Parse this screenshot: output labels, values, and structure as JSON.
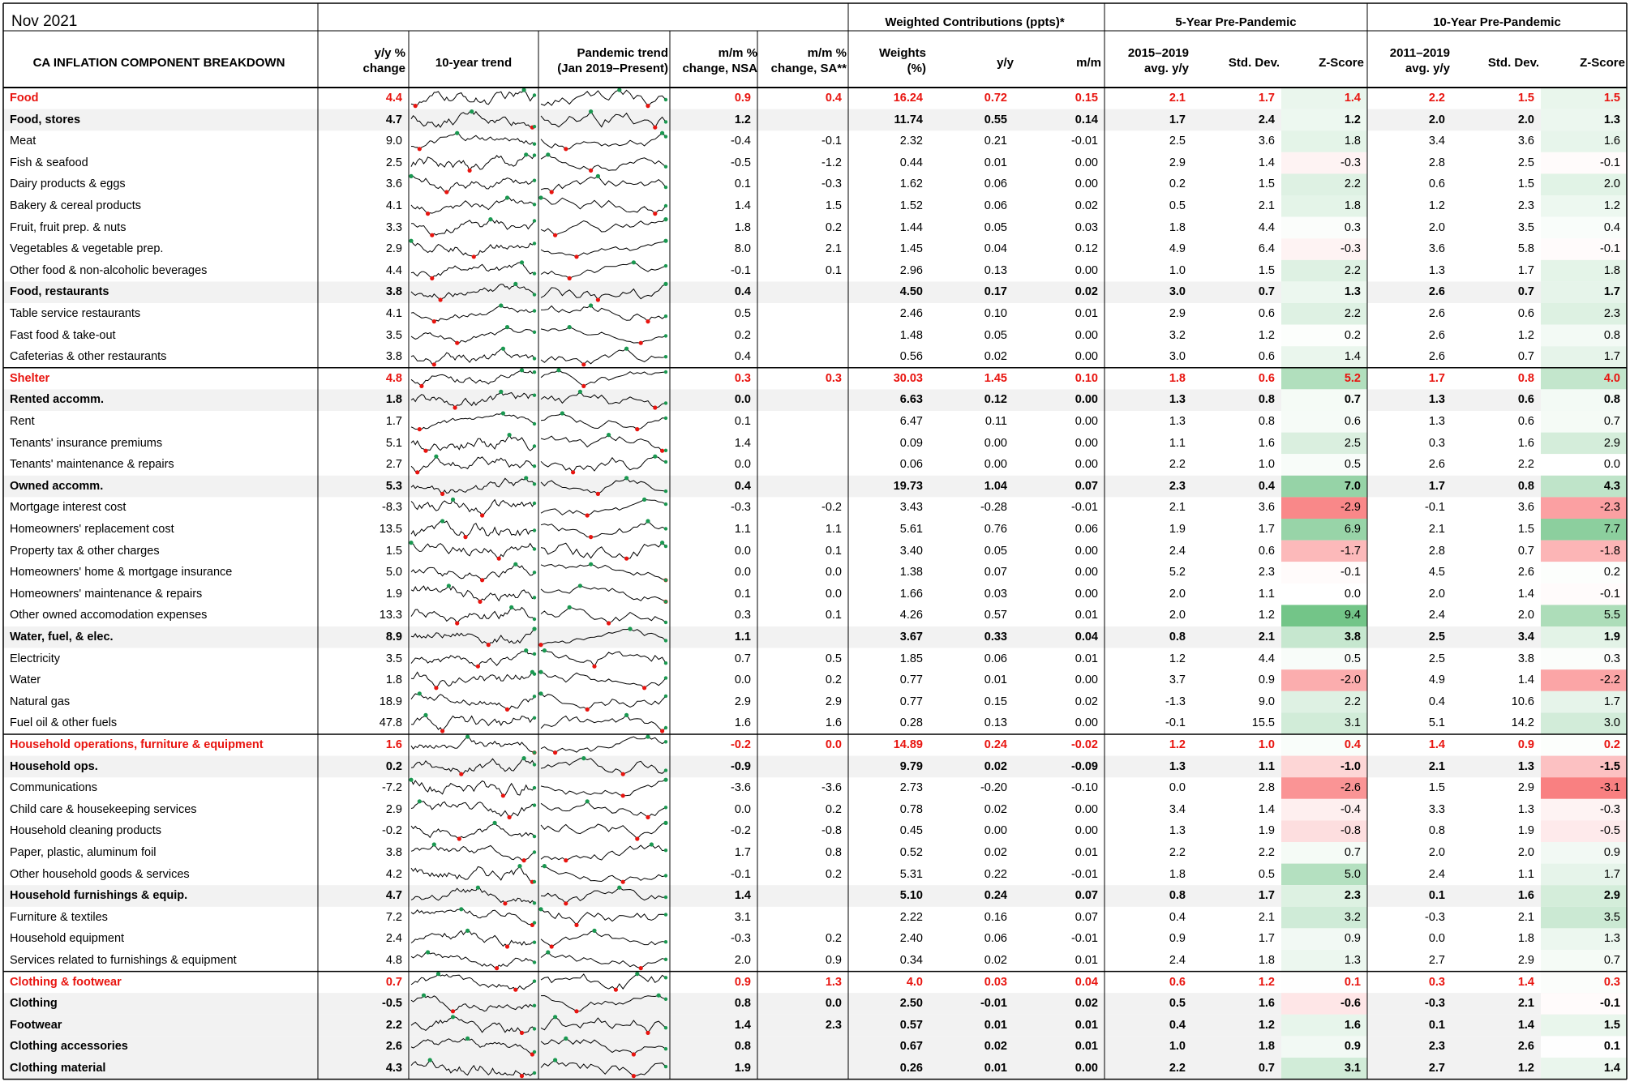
{
  "header": {
    "date": "Nov 2021",
    "title": "CA INFLATION COMPONENT BREAKDOWN",
    "yy_change": [
      "y/y %",
      "change"
    ],
    "trend10": "10-year trend",
    "pandemic_trend": [
      "Pandemic trend",
      "(Jan 2019–Present)"
    ],
    "mm_nsa": [
      "m/m %",
      "change, NSA"
    ],
    "mm_sa": [
      "m/m %",
      "change, SA**"
    ],
    "weighted_group": "Weighted Contributions (ppts)*",
    "weights": [
      "Weights",
      "(%)"
    ],
    "wc_yy": "y/y",
    "wc_mm": "m/m",
    "five_year_group": "5-Year Pre-Pandemic",
    "five_avg": [
      "2015–2019",
      "avg. y/y"
    ],
    "five_sd": "Std. Dev.",
    "five_z": "Z-Score",
    "ten_year_group": "10-Year Pre-Pandemic",
    "ten_avg": [
      "2011–2019",
      "avg. y/y"
    ],
    "ten_sd": "Std. Dev.",
    "ten_z": "Z-Score"
  },
  "colors": {
    "major_text": "#e8140f",
    "shaded_row": "#f2f2f2",
    "grid": "#000000",
    "sparkline": "#000000",
    "marker_high": "#1a9850",
    "marker_low": "#e8140f",
    "z_positive": "#63be7b",
    "z_negative": "#f8696b"
  },
  "rows": [
    {
      "name": "Food",
      "level": "major",
      "yy": "4.4",
      "mm_nsa": "0.9",
      "mm_sa": "0.4",
      "weight": "16.24",
      "wc_yy": "0.72",
      "wc_mm": "0.15",
      "avg5": "2.1",
      "sd5": "1.7",
      "z5": "1.4",
      "avg10": "2.2",
      "sd10": "1.5",
      "z10": "1.5"
    },
    {
      "name": "Food, stores",
      "level": "sub",
      "yy": "4.7",
      "mm_nsa": "1.2",
      "mm_sa": "",
      "weight": "11.74",
      "wc_yy": "0.55",
      "wc_mm": "0.14",
      "avg5": "1.7",
      "sd5": "2.4",
      "z5": "1.2",
      "avg10": "2.0",
      "sd10": "2.0",
      "z10": "1.3"
    },
    {
      "name": "Meat",
      "level": "item",
      "yy": "9.0",
      "mm_nsa": "-0.4",
      "mm_sa": "-0.1",
      "weight": "2.32",
      "wc_yy": "0.21",
      "wc_mm": "-0.01",
      "avg5": "2.5",
      "sd5": "3.6",
      "z5": "1.8",
      "avg10": "3.4",
      "sd10": "3.6",
      "z10": "1.6"
    },
    {
      "name": "Fish & seafood",
      "level": "item",
      "yy": "2.5",
      "mm_nsa": "-0.5",
      "mm_sa": "-1.2",
      "weight": "0.44",
      "wc_yy": "0.01",
      "wc_mm": "0.00",
      "avg5": "2.9",
      "sd5": "1.4",
      "z5": "-0.3",
      "avg10": "2.8",
      "sd10": "2.5",
      "z10": "-0.1"
    },
    {
      "name": "Dairy products & eggs",
      "level": "item",
      "yy": "3.6",
      "mm_nsa": "0.1",
      "mm_sa": "-0.3",
      "weight": "1.62",
      "wc_yy": "0.06",
      "wc_mm": "0.00",
      "avg5": "0.2",
      "sd5": "1.5",
      "z5": "2.2",
      "avg10": "0.6",
      "sd10": "1.5",
      "z10": "2.0"
    },
    {
      "name": "Bakery & cereal products",
      "level": "item",
      "yy": "4.1",
      "mm_nsa": "1.4",
      "mm_sa": "1.5",
      "weight": "1.52",
      "wc_yy": "0.06",
      "wc_mm": "0.02",
      "avg5": "0.5",
      "sd5": "2.1",
      "z5": "1.8",
      "avg10": "1.2",
      "sd10": "2.3",
      "z10": "1.2"
    },
    {
      "name": "Fruit, fruit prep. & nuts",
      "level": "item",
      "yy": "3.3",
      "mm_nsa": "1.8",
      "mm_sa": "0.2",
      "weight": "1.44",
      "wc_yy": "0.05",
      "wc_mm": "0.03",
      "avg5": "1.8",
      "sd5": "4.4",
      "z5": "0.3",
      "avg10": "2.0",
      "sd10": "3.5",
      "z10": "0.4"
    },
    {
      "name": "Vegetables & vegetable prep.",
      "level": "item",
      "yy": "2.9",
      "mm_nsa": "8.0",
      "mm_sa": "2.1",
      "weight": "1.45",
      "wc_yy": "0.04",
      "wc_mm": "0.12",
      "avg5": "4.9",
      "sd5": "6.4",
      "z5": "-0.3",
      "avg10": "3.6",
      "sd10": "5.8",
      "z10": "-0.1"
    },
    {
      "name": "Other food & non-alcoholic beverages",
      "level": "item",
      "yy": "4.4",
      "mm_nsa": "-0.1",
      "mm_sa": "0.1",
      "weight": "2.96",
      "wc_yy": "0.13",
      "wc_mm": "0.00",
      "avg5": "1.0",
      "sd5": "1.5",
      "z5": "2.2",
      "avg10": "1.3",
      "sd10": "1.7",
      "z10": "1.8"
    },
    {
      "name": "Food, restaurants",
      "level": "sub",
      "yy": "3.8",
      "mm_nsa": "0.4",
      "mm_sa": "",
      "weight": "4.50",
      "wc_yy": "0.17",
      "wc_mm": "0.02",
      "avg5": "3.0",
      "sd5": "0.7",
      "z5": "1.3",
      "avg10": "2.6",
      "sd10": "0.7",
      "z10": "1.7"
    },
    {
      "name": "Table service restaurants",
      "level": "item",
      "yy": "4.1",
      "mm_nsa": "0.5",
      "mm_sa": "",
      "weight": "2.46",
      "wc_yy": "0.10",
      "wc_mm": "0.01",
      "avg5": "2.9",
      "sd5": "0.6",
      "z5": "2.2",
      "avg10": "2.6",
      "sd10": "0.6",
      "z10": "2.3"
    },
    {
      "name": "Fast food & take-out",
      "level": "item",
      "yy": "3.5",
      "mm_nsa": "0.2",
      "mm_sa": "",
      "weight": "1.48",
      "wc_yy": "0.05",
      "wc_mm": "0.00",
      "avg5": "3.2",
      "sd5": "1.2",
      "z5": "0.2",
      "avg10": "2.6",
      "sd10": "1.2",
      "z10": "0.8"
    },
    {
      "name": "Cafeterias & other restaurants",
      "level": "item",
      "yy": "3.8",
      "mm_nsa": "0.4",
      "mm_sa": "",
      "weight": "0.56",
      "wc_yy": "0.02",
      "wc_mm": "0.00",
      "avg5": "3.0",
      "sd5": "0.6",
      "z5": "1.4",
      "avg10": "2.6",
      "sd10": "0.7",
      "z10": "1.7"
    },
    {
      "name": "Shelter",
      "level": "major",
      "yy": "4.8",
      "mm_nsa": "0.3",
      "mm_sa": "0.3",
      "weight": "30.03",
      "wc_yy": "1.45",
      "wc_mm": "0.10",
      "avg5": "1.8",
      "sd5": "0.6",
      "z5": "5.2",
      "avg10": "1.7",
      "sd10": "0.8",
      "z10": "4.0"
    },
    {
      "name": "Rented accomm.",
      "level": "sub",
      "yy": "1.8",
      "mm_nsa": "0.0",
      "mm_sa": "",
      "weight": "6.63",
      "wc_yy": "0.12",
      "wc_mm": "0.00",
      "avg5": "1.3",
      "sd5": "0.8",
      "z5": "0.7",
      "avg10": "1.3",
      "sd10": "0.6",
      "z10": "0.8"
    },
    {
      "name": "Rent",
      "level": "item",
      "yy": "1.7",
      "mm_nsa": "0.1",
      "mm_sa": "",
      "weight": "6.47",
      "wc_yy": "0.11",
      "wc_mm": "0.00",
      "avg5": "1.3",
      "sd5": "0.8",
      "z5": "0.6",
      "avg10": "1.3",
      "sd10": "0.6",
      "z10": "0.7"
    },
    {
      "name": "Tenants' insurance premiums",
      "level": "item",
      "yy": "5.1",
      "mm_nsa": "1.4",
      "mm_sa": "",
      "weight": "0.09",
      "wc_yy": "0.00",
      "wc_mm": "0.00",
      "avg5": "1.1",
      "sd5": "1.6",
      "z5": "2.5",
      "avg10": "0.3",
      "sd10": "1.6",
      "z10": "2.9"
    },
    {
      "name": "Tenants' maintenance & repairs",
      "level": "item",
      "yy": "2.7",
      "mm_nsa": "0.0",
      "mm_sa": "",
      "weight": "0.06",
      "wc_yy": "0.00",
      "wc_mm": "0.00",
      "avg5": "2.2",
      "sd5": "1.0",
      "z5": "0.5",
      "avg10": "2.6",
      "sd10": "2.2",
      "z10": "0.0"
    },
    {
      "name": "Owned accomm.",
      "level": "sub",
      "yy": "5.3",
      "mm_nsa": "0.4",
      "mm_sa": "",
      "weight": "19.73",
      "wc_yy": "1.04",
      "wc_mm": "0.07",
      "avg5": "2.3",
      "sd5": "0.4",
      "z5": "7.0",
      "avg10": "1.7",
      "sd10": "0.8",
      "z10": "4.3"
    },
    {
      "name": "Mortgage interest cost",
      "level": "item",
      "yy": "-8.3",
      "mm_nsa": "-0.3",
      "mm_sa": "-0.2",
      "weight": "3.43",
      "wc_yy": "-0.28",
      "wc_mm": "-0.01",
      "avg5": "2.1",
      "sd5": "3.6",
      "z5": "-2.9",
      "avg10": "-0.1",
      "sd10": "3.6",
      "z10": "-2.3"
    },
    {
      "name": "Homeowners' replacement cost",
      "level": "item",
      "yy": "13.5",
      "mm_nsa": "1.1",
      "mm_sa": "1.1",
      "weight": "5.61",
      "wc_yy": "0.76",
      "wc_mm": "0.06",
      "avg5": "1.9",
      "sd5": "1.7",
      "z5": "6.9",
      "avg10": "2.1",
      "sd10": "1.5",
      "z10": "7.7"
    },
    {
      "name": "Property tax & other charges",
      "level": "item",
      "yy": "1.5",
      "mm_nsa": "0.0",
      "mm_sa": "0.1",
      "weight": "3.40",
      "wc_yy": "0.05",
      "wc_mm": "0.00",
      "avg5": "2.4",
      "sd5": "0.6",
      "z5": "-1.7",
      "avg10": "2.8",
      "sd10": "0.7",
      "z10": "-1.8"
    },
    {
      "name": "Homeowners' home & mortgage insurance",
      "level": "item",
      "yy": "5.0",
      "mm_nsa": "0.0",
      "mm_sa": "0.0",
      "weight": "1.38",
      "wc_yy": "0.07",
      "wc_mm": "0.00",
      "avg5": "5.2",
      "sd5": "2.3",
      "z5": "-0.1",
      "avg10": "4.5",
      "sd10": "2.6",
      "z10": "0.2"
    },
    {
      "name": "Homeowners' maintenance & repairs",
      "level": "item",
      "yy": "1.9",
      "mm_nsa": "0.1",
      "mm_sa": "0.0",
      "weight": "1.66",
      "wc_yy": "0.03",
      "wc_mm": "0.00",
      "avg5": "2.0",
      "sd5": "1.1",
      "z5": "0.0",
      "avg10": "2.0",
      "sd10": "1.4",
      "z10": "-0.1"
    },
    {
      "name": "Other owned accomodation expenses",
      "level": "item",
      "yy": "13.3",
      "mm_nsa": "0.3",
      "mm_sa": "0.1",
      "weight": "4.26",
      "wc_yy": "0.57",
      "wc_mm": "0.01",
      "avg5": "2.0",
      "sd5": "1.2",
      "z5": "9.4",
      "avg10": "2.4",
      "sd10": "2.0",
      "z10": "5.5"
    },
    {
      "name": "Water, fuel, & elec.",
      "level": "sub",
      "yy": "8.9",
      "mm_nsa": "1.1",
      "mm_sa": "",
      "weight": "3.67",
      "wc_yy": "0.33",
      "wc_mm": "0.04",
      "avg5": "0.8",
      "sd5": "2.1",
      "z5": "3.8",
      "avg10": "2.5",
      "sd10": "3.4",
      "z10": "1.9"
    },
    {
      "name": "Electricity",
      "level": "item",
      "yy": "3.5",
      "mm_nsa": "0.7",
      "mm_sa": "0.5",
      "weight": "1.85",
      "wc_yy": "0.06",
      "wc_mm": "0.01",
      "avg5": "1.2",
      "sd5": "4.4",
      "z5": "0.5",
      "avg10": "2.5",
      "sd10": "3.8",
      "z10": "0.3"
    },
    {
      "name": "Water",
      "level": "item",
      "yy": "1.8",
      "mm_nsa": "0.0",
      "mm_sa": "0.2",
      "weight": "0.77",
      "wc_yy": "0.01",
      "wc_mm": "0.00",
      "avg5": "3.7",
      "sd5": "0.9",
      "z5": "-2.0",
      "avg10": "4.9",
      "sd10": "1.4",
      "z10": "-2.2"
    },
    {
      "name": "Natural gas",
      "level": "item",
      "yy": "18.9",
      "mm_nsa": "2.9",
      "mm_sa": "2.9",
      "weight": "0.77",
      "wc_yy": "0.15",
      "wc_mm": "0.02",
      "avg5": "-1.3",
      "sd5": "9.0",
      "z5": "2.2",
      "avg10": "0.4",
      "sd10": "10.6",
      "z10": "1.7"
    },
    {
      "name": "Fuel oil & other fuels",
      "level": "item",
      "yy": "47.8",
      "mm_nsa": "1.6",
      "mm_sa": "1.6",
      "weight": "0.28",
      "wc_yy": "0.13",
      "wc_mm": "0.00",
      "avg5": "-0.1",
      "sd5": "15.5",
      "z5": "3.1",
      "avg10": "5.1",
      "sd10": "14.2",
      "z10": "3.0"
    },
    {
      "name": "Household operations, furniture & equipment",
      "level": "major",
      "yy": "1.6",
      "mm_nsa": "-0.2",
      "mm_sa": "0.0",
      "weight": "14.89",
      "wc_yy": "0.24",
      "wc_mm": "-0.02",
      "avg5": "1.2",
      "sd5": "1.0",
      "z5": "0.4",
      "avg10": "1.4",
      "sd10": "0.9",
      "z10": "0.2"
    },
    {
      "name": "Household ops.",
      "level": "sub",
      "yy": "0.2",
      "mm_nsa": "-0.9",
      "mm_sa": "",
      "weight": "9.79",
      "wc_yy": "0.02",
      "wc_mm": "-0.09",
      "avg5": "1.3",
      "sd5": "1.1",
      "z5": "-1.0",
      "avg10": "2.1",
      "sd10": "1.3",
      "z10": "-1.5"
    },
    {
      "name": "Communications",
      "level": "item",
      "yy": "-7.2",
      "mm_nsa": "-3.6",
      "mm_sa": "-3.6",
      "weight": "2.73",
      "wc_yy": "-0.20",
      "wc_mm": "-0.10",
      "avg5": "0.0",
      "sd5": "2.8",
      "z5": "-2.6",
      "avg10": "1.5",
      "sd10": "2.9",
      "z10": "-3.1"
    },
    {
      "name": "Child care & housekeeping services",
      "level": "item",
      "yy": "2.9",
      "mm_nsa": "0.0",
      "mm_sa": "0.2",
      "weight": "0.78",
      "wc_yy": "0.02",
      "wc_mm": "0.00",
      "avg5": "3.4",
      "sd5": "1.4",
      "z5": "-0.4",
      "avg10": "3.3",
      "sd10": "1.3",
      "z10": "-0.3"
    },
    {
      "name": "Household cleaning products",
      "level": "item",
      "yy": "-0.2",
      "mm_nsa": "-0.2",
      "mm_sa": "-0.8",
      "weight": "0.45",
      "wc_yy": "0.00",
      "wc_mm": "0.00",
      "avg5": "1.3",
      "sd5": "1.9",
      "z5": "-0.8",
      "avg10": "0.8",
      "sd10": "1.9",
      "z10": "-0.5"
    },
    {
      "name": "Paper, plastic, aluminum foil",
      "level": "item",
      "yy": "3.8",
      "mm_nsa": "1.7",
      "mm_sa": "0.8",
      "weight": "0.52",
      "wc_yy": "0.02",
      "wc_mm": "0.01",
      "avg5": "2.2",
      "sd5": "2.2",
      "z5": "0.7",
      "avg10": "2.0",
      "sd10": "2.0",
      "z10": "0.9"
    },
    {
      "name": "Other household goods & services",
      "level": "item",
      "yy": "4.2",
      "mm_nsa": "-0.1",
      "mm_sa": "0.2",
      "weight": "5.31",
      "wc_yy": "0.22",
      "wc_mm": "-0.01",
      "avg5": "1.8",
      "sd5": "0.5",
      "z5": "5.0",
      "avg10": "2.4",
      "sd10": "1.1",
      "z10": "1.7"
    },
    {
      "name": "Household furnishings & equip.",
      "level": "sub",
      "yy": "4.7",
      "mm_nsa": "1.4",
      "mm_sa": "",
      "weight": "5.10",
      "wc_yy": "0.24",
      "wc_mm": "0.07",
      "avg5": "0.8",
      "sd5": "1.7",
      "z5": "2.3",
      "avg10": "0.1",
      "sd10": "1.6",
      "z10": "2.9"
    },
    {
      "name": "Furniture & textiles",
      "level": "item",
      "yy": "7.2",
      "mm_nsa": "3.1",
      "mm_sa": "",
      "weight": "2.22",
      "wc_yy": "0.16",
      "wc_mm": "0.07",
      "avg5": "0.4",
      "sd5": "2.1",
      "z5": "3.2",
      "avg10": "-0.3",
      "sd10": "2.1",
      "z10": "3.5"
    },
    {
      "name": "Household equipment",
      "level": "item",
      "yy": "2.4",
      "mm_nsa": "-0.3",
      "mm_sa": "0.2",
      "weight": "2.40",
      "wc_yy": "0.06",
      "wc_mm": "-0.01",
      "avg5": "0.9",
      "sd5": "1.7",
      "z5": "0.9",
      "avg10": "0.0",
      "sd10": "1.8",
      "z10": "1.3"
    },
    {
      "name": "Services related to furnishings & equipment",
      "level": "item",
      "yy": "4.8",
      "mm_nsa": "2.0",
      "mm_sa": "0.9",
      "weight": "0.34",
      "wc_yy": "0.02",
      "wc_mm": "0.01",
      "avg5": "2.4",
      "sd5": "1.8",
      "z5": "1.3",
      "avg10": "2.7",
      "sd10": "2.9",
      "z10": "0.7"
    },
    {
      "name": "Clothing & footwear",
      "level": "major",
      "yy": "0.7",
      "mm_nsa": "0.9",
      "mm_sa": "1.3",
      "weight": "4.0",
      "wc_yy": "0.03",
      "wc_mm": "0.04",
      "avg5": "0.6",
      "sd5": "1.2",
      "z5": "0.1",
      "avg10": "0.3",
      "sd10": "1.4",
      "z10": "0.3"
    },
    {
      "name": "Clothing",
      "level": "sub",
      "yy": "-0.5",
      "mm_nsa": "0.8",
      "mm_sa": "0.0",
      "weight": "2.50",
      "wc_yy": "-0.01",
      "wc_mm": "0.02",
      "avg5": "0.5",
      "sd5": "1.6",
      "z5": "-0.6",
      "avg10": "-0.3",
      "sd10": "2.1",
      "z10": "-0.1"
    },
    {
      "name": "Footwear",
      "level": "sub",
      "yy": "2.2",
      "mm_nsa": "1.4",
      "mm_sa": "2.3",
      "weight": "0.57",
      "wc_yy": "0.01",
      "wc_mm": "0.01",
      "avg5": "0.4",
      "sd5": "1.2",
      "z5": "1.6",
      "avg10": "0.1",
      "sd10": "1.4",
      "z10": "1.5"
    },
    {
      "name": "Clothing accessories",
      "level": "sub",
      "yy": "2.6",
      "mm_nsa": "0.8",
      "mm_sa": "",
      "weight": "0.67",
      "wc_yy": "0.02",
      "wc_mm": "0.01",
      "avg5": "1.0",
      "sd5": "1.8",
      "z5": "0.9",
      "avg10": "2.3",
      "sd10": "2.6",
      "z10": "0.1"
    },
    {
      "name": "Clothing material",
      "level": "sub",
      "yy": "4.3",
      "mm_nsa": "1.9",
      "mm_sa": "",
      "weight": "0.26",
      "wc_yy": "0.01",
      "wc_mm": "0.00",
      "avg5": "2.2",
      "sd5": "0.7",
      "z5": "3.1",
      "avg10": "2.7",
      "sd10": "1.2",
      "z10": "1.4"
    }
  ]
}
